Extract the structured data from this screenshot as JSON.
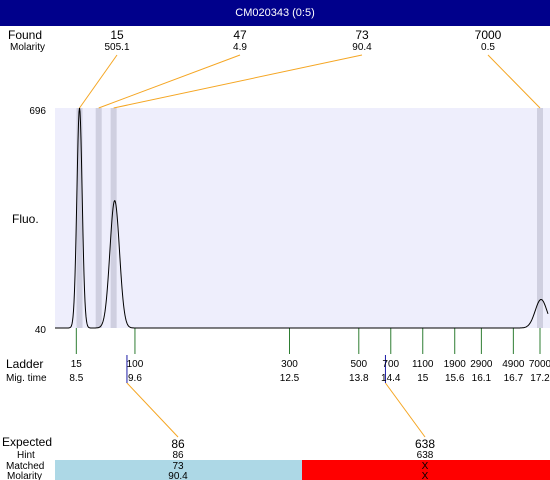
{
  "title": "CM020343 (0:5)",
  "colors": {
    "title_bg": "#00008b",
    "plot_bg": "#eeeefc",
    "peak_band": "#cfcfe0",
    "leader_line": "#f5a623",
    "ladder_tick": "#2e7d32",
    "marker_tick": "#1a1aa6",
    "matched_bg": "#add8e6",
    "unmatched_bg": "#ff0000"
  },
  "labels": {
    "found": "Found",
    "molarity": "Molarity",
    "fluo": "Fluo.",
    "ladder": "Ladder",
    "mig_time": "Mig. time",
    "expected": "Expected",
    "hint": "Hint",
    "matched": "Matched",
    "molarity_bottom": "Molarity"
  },
  "chart_data": {
    "type": "line",
    "ylabel": "Fluo.",
    "ylim": [
      40,
      696
    ],
    "xlim": [
      8.1,
      17.35
    ],
    "y_ticks": [
      "696",
      "40"
    ],
    "signal": {
      "baseline": 40,
      "peaks": [
        {
          "x": 8.56,
          "height": 696,
          "width": 0.05
        },
        {
          "x": 9.22,
          "height": 420,
          "width": 0.09
        },
        {
          "x": 17.22,
          "height": 125,
          "width": 0.11
        }
      ]
    },
    "found_peaks": [
      {
        "size": "15",
        "molarity": "505.1",
        "time": 8.56
      },
      {
        "size": "47",
        "molarity": "4.9",
        "time": 8.92
      },
      {
        "size": "73",
        "molarity": "90.4",
        "time": 9.2
      },
      {
        "size": "7000",
        "molarity": "0.5",
        "time": 17.2
      }
    ],
    "ladder": [
      {
        "size": "15",
        "time": "8.5",
        "t": 8.5
      },
      {
        "size": "100",
        "time": "9.6",
        "t": 9.6
      },
      {
        "size": "300",
        "time": "12.5",
        "t": 12.5
      },
      {
        "size": "500",
        "time": "13.8",
        "t": 13.8
      },
      {
        "size": "700",
        "time": "14.4",
        "t": 14.4
      },
      {
        "size": "1100",
        "time": "15",
        "t": 15.0
      },
      {
        "size": "1900",
        "time": "15.6",
        "t": 15.6
      },
      {
        "size": "2900",
        "time": "16.1",
        "t": 16.1
      },
      {
        "size": "4900",
        "time": "16.7",
        "t": 16.7
      },
      {
        "size": "7000",
        "time": "17.2",
        "t": 17.2
      }
    ],
    "expected": [
      {
        "size": "86",
        "hint": "86",
        "matched": "73",
        "molarity": "90.4",
        "status": "matched",
        "time": 9.45
      },
      {
        "size": "638",
        "hint": "638",
        "matched": "X",
        "molarity": "X",
        "status": "unmatched",
        "time": 14.3
      }
    ]
  }
}
